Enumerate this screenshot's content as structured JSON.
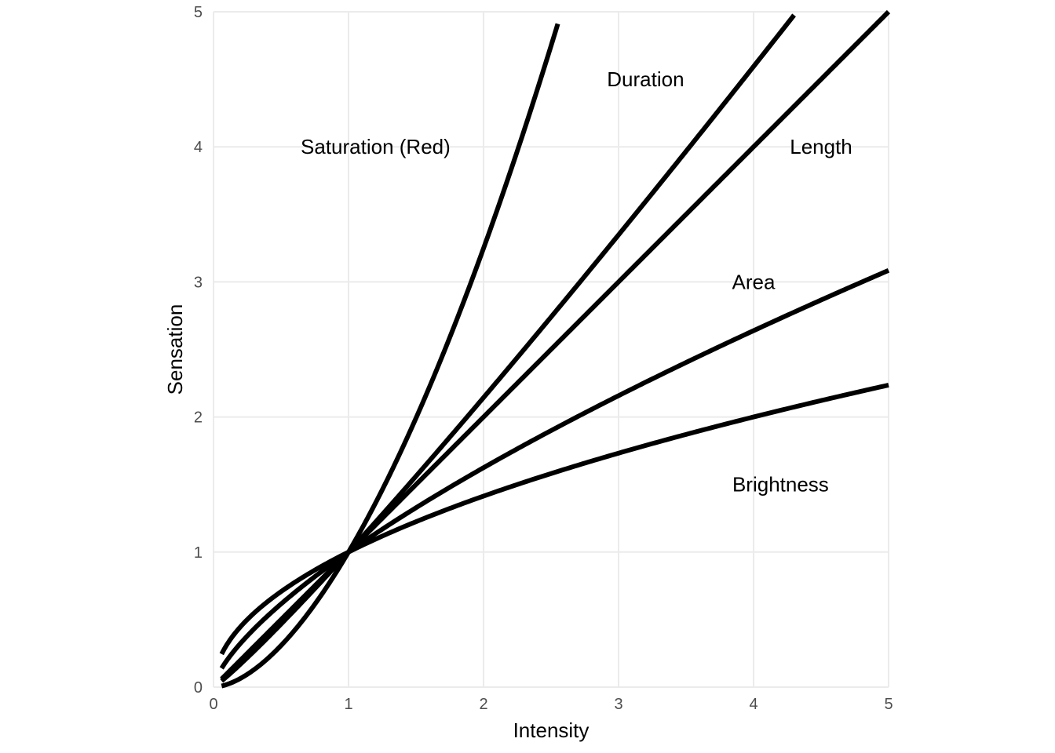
{
  "chart_data": {
    "type": "line",
    "xlabel": "Intensity",
    "ylabel": "Sensation",
    "xlim": [
      0,
      5
    ],
    "ylim": [
      0,
      5
    ],
    "x_ticks": [
      "0",
      "1",
      "2",
      "3",
      "4",
      "5"
    ],
    "y_ticks": [
      "0",
      "1",
      "2",
      "3",
      "4",
      "5"
    ],
    "grid": true,
    "legend": "none",
    "line_color": "#000000",
    "grid_color": "#ebebeb",
    "series": [
      {
        "name": "Saturation (Red)",
        "exponent": 1.7,
        "x_max": 2.55,
        "label_pos": [
          1.2,
          4.0
        ]
      },
      {
        "name": "Duration",
        "exponent": 1.1,
        "x_max": 4.3,
        "label_pos": [
          3.2,
          4.5
        ]
      },
      {
        "name": "Length",
        "exponent": 1.0,
        "x_max": 5.0,
        "label_pos": [
          4.5,
          4.0
        ]
      },
      {
        "name": "Area",
        "exponent": 0.7,
        "x_max": 5.0,
        "label_pos": [
          4.0,
          3.0
        ]
      },
      {
        "name": "Brightness",
        "exponent": 0.5,
        "x_max": 5.0,
        "label_pos": [
          4.2,
          1.5
        ]
      }
    ]
  }
}
